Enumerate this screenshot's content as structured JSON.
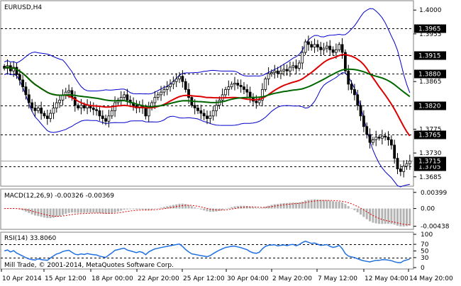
{
  "chart_data": {
    "type": "candlestick",
    "main": {
      "symbol_label": "EURUSD,H4",
      "ylim": [
        1.367,
        1.4015
      ],
      "price_ticks": [
        {
          "price": 1.4,
          "label": "1.4000"
        },
        {
          "price": 1.3955,
          "label": "1.3955"
        },
        {
          "price": 1.3865,
          "label": "1.3865"
        },
        {
          "price": 1.3775,
          "label": "1.3775"
        },
        {
          "price": 1.373,
          "label": "1.3730"
        },
        {
          "price": 1.3685,
          "label": "1.3685"
        }
      ],
      "levels": [
        {
          "price": 1.3965,
          "label": "1.3965"
        },
        {
          "price": 1.3915,
          "label": "1.3915"
        },
        {
          "price": 1.388,
          "label": "1.3880"
        },
        {
          "price": 1.382,
          "label": "1.3820"
        },
        {
          "price": 1.3765,
          "label": "1.3765"
        },
        {
          "price": 1.3705,
          "label": "1.3705"
        }
      ],
      "current_price": {
        "price": 1.3715,
        "label": "1.3715"
      },
      "closes": [
        1.389,
        1.3895,
        1.3885,
        1.3892,
        1.3878,
        1.3868,
        1.3855,
        1.384,
        1.3825,
        1.3815,
        1.381,
        1.3815,
        1.3805,
        1.38,
        1.3795,
        1.3805,
        1.3815,
        1.3825,
        1.383,
        1.384,
        1.3845,
        1.3848,
        1.3835,
        1.382,
        1.3815,
        1.382,
        1.3815,
        1.382,
        1.3815,
        1.3812,
        1.381,
        1.38,
        1.3795,
        1.379,
        1.38,
        1.381,
        1.3825,
        1.383,
        1.3835,
        1.384,
        1.383,
        1.3825,
        1.382,
        1.3815,
        1.382,
        1.3815,
        1.38,
        1.3815,
        1.3825,
        1.3835,
        1.384,
        1.3845,
        1.385,
        1.3855,
        1.386,
        1.3865,
        1.387,
        1.3875,
        1.3865,
        1.385,
        1.3835,
        1.382,
        1.3815,
        1.381,
        1.3805,
        1.38,
        1.3795,
        1.38,
        1.381,
        1.382,
        1.383,
        1.384,
        1.385,
        1.3855,
        1.386,
        1.3862,
        1.3858,
        1.3855,
        1.385,
        1.3845,
        1.3835,
        1.3828,
        1.3825,
        1.383,
        1.385,
        1.387,
        1.388,
        1.3882,
        1.3885,
        1.388,
        1.3885,
        1.3888,
        1.3885,
        1.3892,
        1.3895,
        1.389,
        1.39,
        1.392,
        1.394,
        1.3935,
        1.393,
        1.3935,
        1.393,
        1.3925,
        1.3928,
        1.3932,
        1.3925,
        1.392,
        1.3925,
        1.3935,
        1.392,
        1.3885,
        1.386,
        1.385,
        1.384,
        1.382,
        1.38,
        1.378,
        1.3765,
        1.375,
        1.3755,
        1.376,
        1.3758,
        1.3762,
        1.376,
        1.3755,
        1.3745,
        1.372,
        1.37,
        1.3695,
        1.3705,
        1.371,
        1.3715
      ],
      "moving_averages": [
        {
          "name": "red",
          "color": "#dd0000",
          "period": 21
        },
        {
          "name": "green",
          "color": "#006600",
          "period": 40
        }
      ],
      "bands": {
        "color": "#0000cc",
        "period": 20,
        "deviation": 2
      }
    },
    "macd": {
      "label": "MACD(12,26,9) -0.00326 -0.00369",
      "ylim": [
        -0.0048,
        0.0043
      ],
      "ticks": [
        {
          "value": 0.00399,
          "label": "0.00399"
        },
        {
          "value": 0.0,
          "label": "0.00"
        },
        {
          "value": -0.00438,
          "label": "-0.00438"
        }
      ]
    },
    "rsi": {
      "label": "RSI(14) 33.8060",
      "ylim": [
        0,
        100
      ],
      "ticks": [
        {
          "value": 100,
          "label": "100"
        },
        {
          "value": 70,
          "label": "70"
        },
        {
          "value": 50,
          "label": "50"
        },
        {
          "value": 30,
          "label": "30"
        },
        {
          "value": 0,
          "label": "0"
        }
      ],
      "levels": [
        70,
        30
      ],
      "color": "#1e6fe0"
    },
    "x_axis": {
      "labels": [
        "10 Apr 2014",
        "15 Apr 12:00",
        "18 Apr 00:00",
        "22 Apr 20:00",
        "25 Apr 12:00",
        "30 Apr 04:00",
        "2 May 20:00",
        "7 May 12:00",
        "12 May 04:00",
        "14 May 20:00"
      ]
    },
    "copyright": "Mill Trade, © 2001-2014, MetaQuotes Software Corp."
  }
}
